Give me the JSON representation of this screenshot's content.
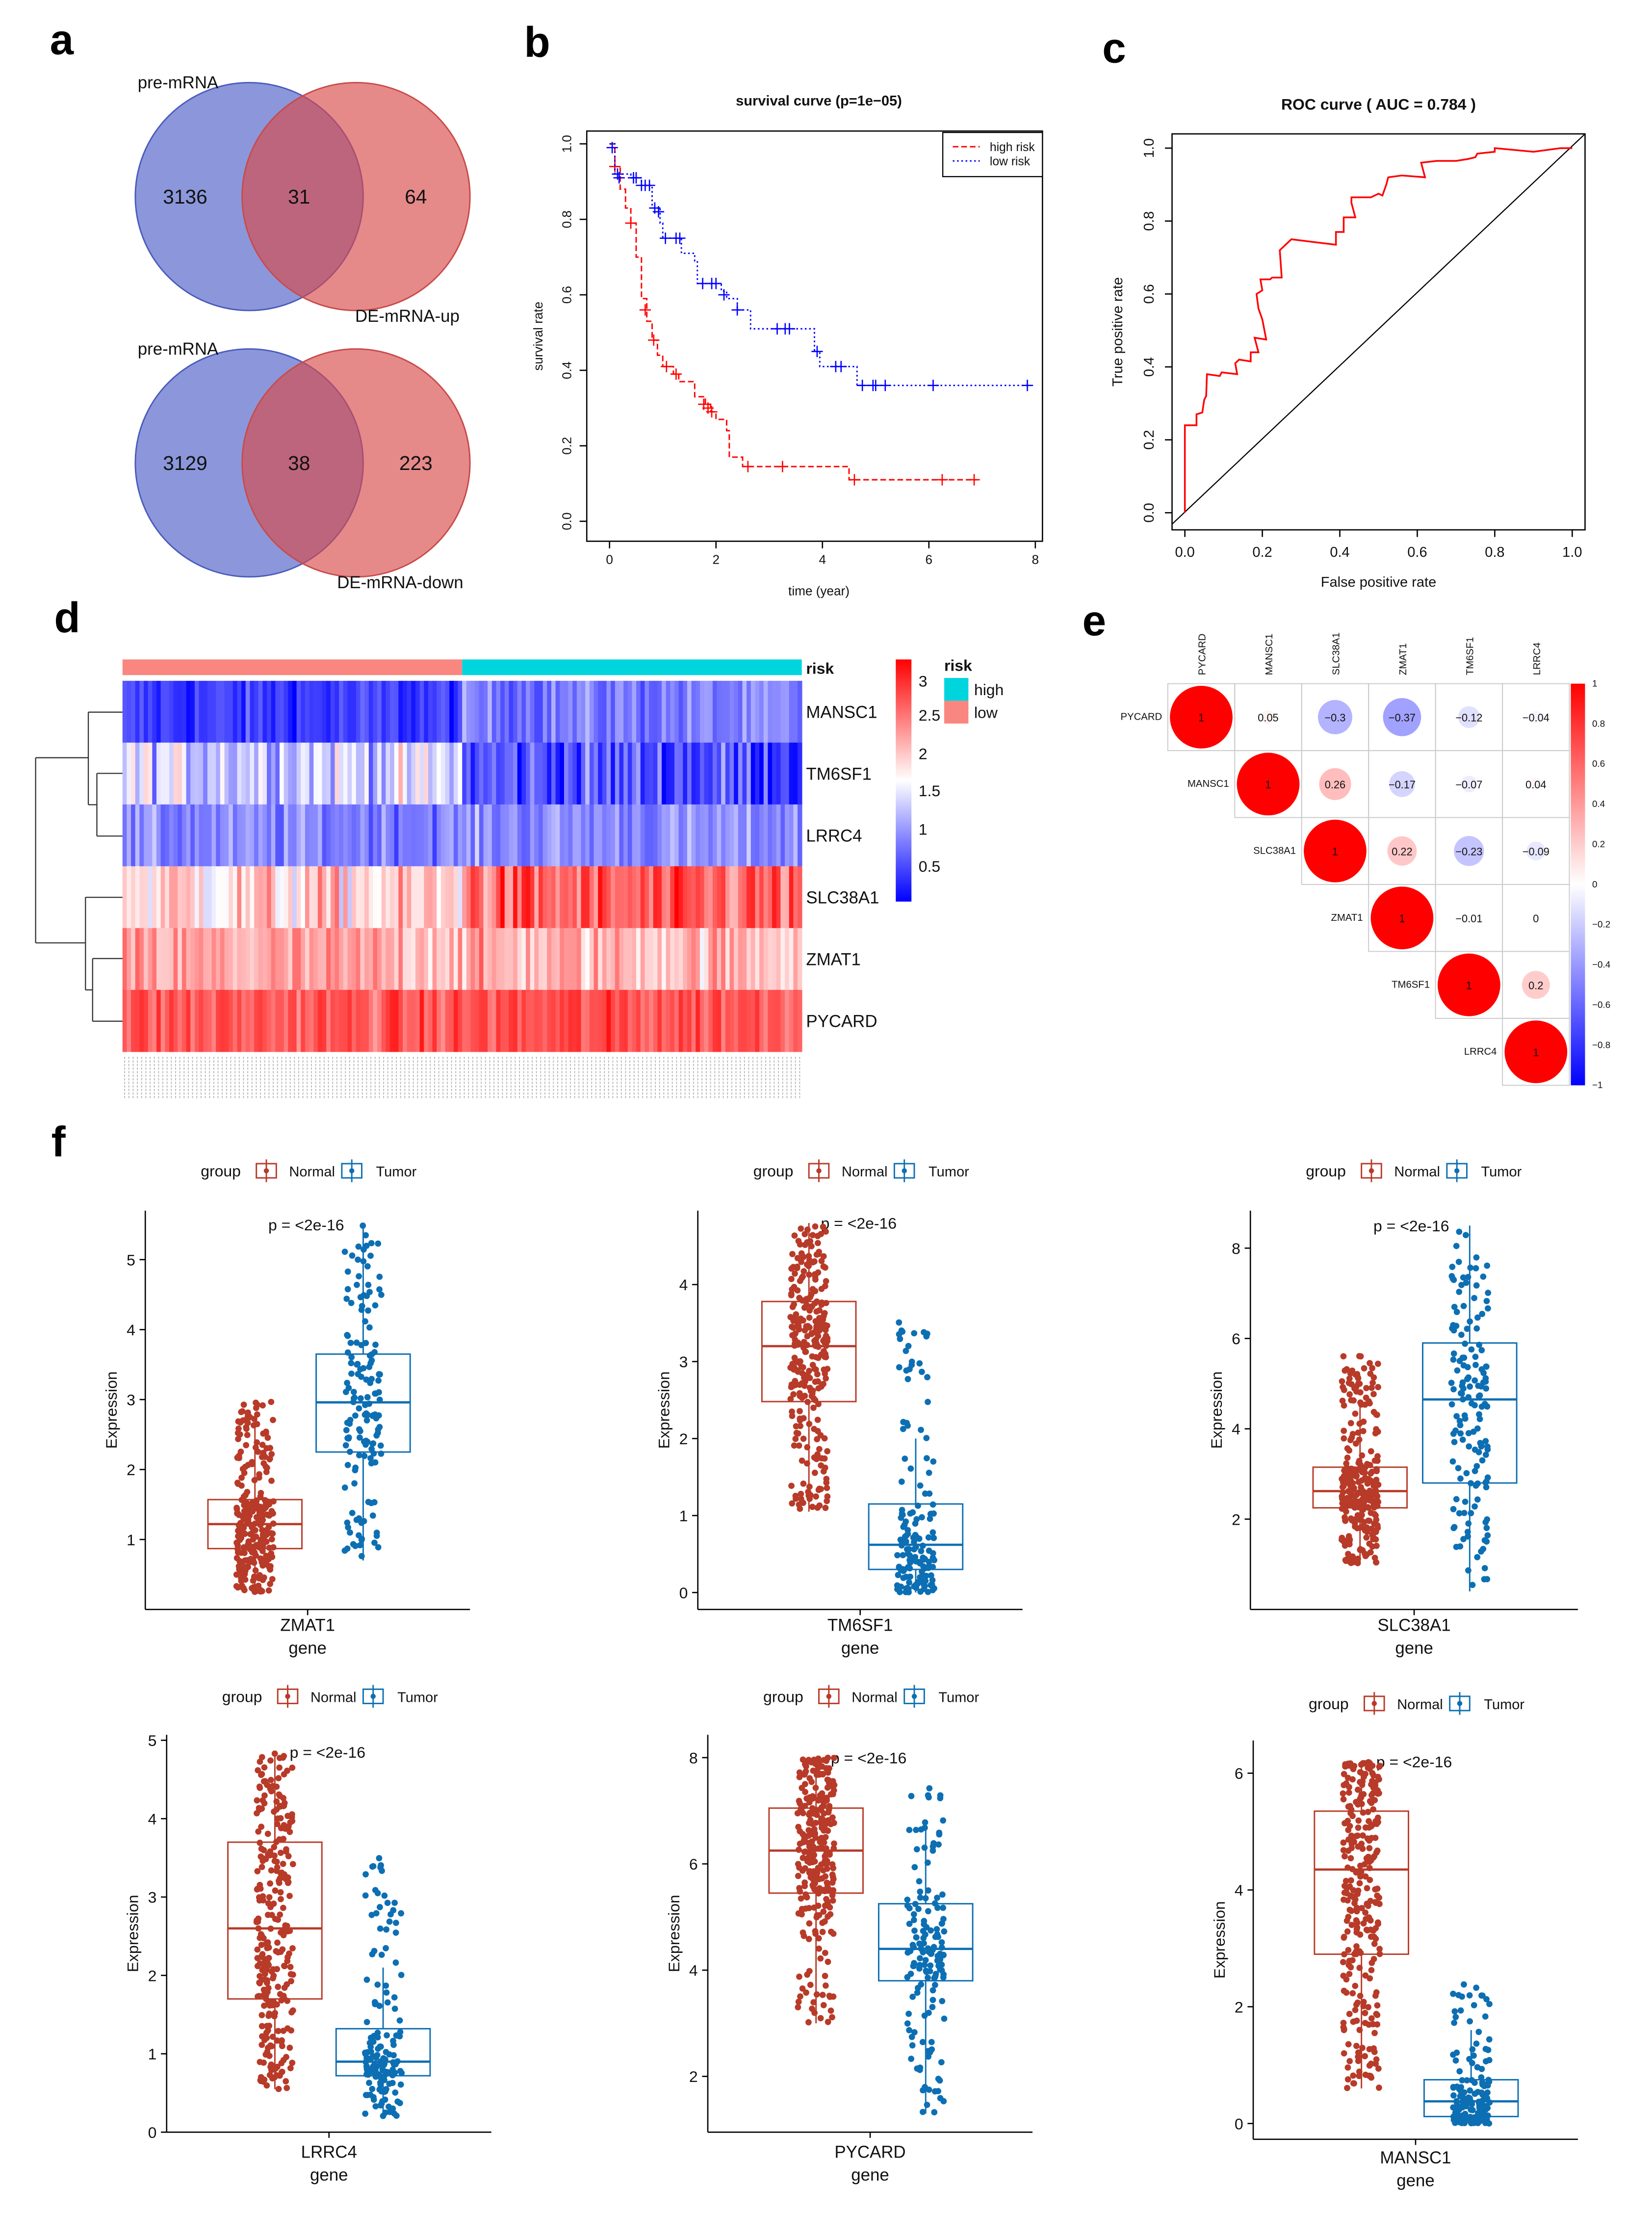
{
  "panel_labels": [
    "a",
    "b",
    "c",
    "d",
    "e",
    "f"
  ],
  "colors": {
    "blue": "#4457c4",
    "red": "#d94a4a",
    "high_risk": "#ff0000",
    "low_risk": "#0000ff",
    "cyan": "#00d5de",
    "salmon": "#f9877f",
    "normal": "#b83a28",
    "tumor": "#0d6fb3"
  },
  "venn": [
    {
      "left_label": "pre-mRNA",
      "right_label": "DE-mRNA-up",
      "left_only": "3136",
      "overlap": "31",
      "right_only": "64"
    },
    {
      "left_label": "pre-mRNA",
      "right_label": "DE-mRNA-down",
      "left_only": "3129",
      "overlap": "38",
      "right_only": "223"
    }
  ],
  "chart_data": [
    {
      "type": "line",
      "title": "survival curve (p=1e−05)",
      "xlabel": "time (year)",
      "ylabel": "survival rate",
      "xlim": [
        0,
        8
      ],
      "ylim": [
        0,
        1
      ],
      "xticks": [
        0,
        2,
        4,
        6,
        8
      ],
      "yticks": [
        "0.0",
        "0.2",
        "0.4",
        "0.6",
        "0.8",
        "1.0"
      ],
      "legend": {
        "position": "top-right",
        "entries": [
          "high risk",
          "low risk"
        ]
      },
      "series": [
        {
          "name": "high risk",
          "style": "dashed",
          "color": "#ff0000",
          "steps": [
            [
              0,
              1
            ],
            [
              0.1,
              0.94
            ],
            [
              0.2,
              0.88
            ],
            [
              0.3,
              0.83
            ],
            [
              0.4,
              0.79
            ],
            [
              0.5,
              0.7
            ],
            [
              0.6,
              0.59
            ],
            [
              0.7,
              0.53
            ],
            [
              0.8,
              0.48
            ],
            [
              0.9,
              0.44
            ],
            [
              1.0,
              0.41
            ],
            [
              1.2,
              0.39
            ],
            [
              1.3,
              0.37
            ],
            [
              1.6,
              0.33
            ],
            [
              1.8,
              0.31
            ],
            [
              1.9,
              0.29
            ],
            [
              2.0,
              0.27
            ],
            [
              2.2,
              0.24
            ],
            [
              2.25,
              0.17
            ],
            [
              2.5,
              0.145
            ],
            [
              4.5,
              0.11
            ],
            [
              6.9,
              0.11
            ]
          ],
          "censored": [
            [
              0.1,
              0.94
            ],
            [
              0.4,
              0.79
            ],
            [
              0.67,
              0.56
            ],
            [
              0.83,
              0.48
            ],
            [
              1.07,
              0.41
            ],
            [
              1.25,
              0.39
            ],
            [
              1.77,
              0.31
            ],
            [
              1.85,
              0.3
            ],
            [
              1.92,
              0.29
            ],
            [
              2.6,
              0.145
            ],
            [
              3.25,
              0.145
            ],
            [
              4.6,
              0.11
            ],
            [
              6.25,
              0.11
            ],
            [
              6.85,
              0.11
            ]
          ]
        },
        {
          "name": "low risk",
          "style": "dotted",
          "color": "#0000ff",
          "steps": [
            [
              0,
              1
            ],
            [
              0.1,
              0.92
            ],
            [
              0.4,
              0.91
            ],
            [
              0.6,
              0.89
            ],
            [
              0.8,
              0.83
            ],
            [
              0.95,
              0.79
            ],
            [
              1.0,
              0.75
            ],
            [
              1.35,
              0.71
            ],
            [
              1.6,
              0.69
            ],
            [
              1.65,
              0.63
            ],
            [
              2.1,
              0.61
            ],
            [
              2.2,
              0.59
            ],
            [
              2.4,
              0.56
            ],
            [
              2.65,
              0.51
            ],
            [
              3.85,
              0.45
            ],
            [
              3.95,
              0.41
            ],
            [
              4.65,
              0.36
            ],
            [
              7.85,
              0.36
            ]
          ],
          "censored": [
            [
              0.05,
              0.99
            ],
            [
              0.15,
              0.92
            ],
            [
              0.18,
              0.91
            ],
            [
              0.45,
              0.91
            ],
            [
              0.5,
              0.91
            ],
            [
              0.6,
              0.89
            ],
            [
              0.67,
              0.89
            ],
            [
              0.75,
              0.89
            ],
            [
              0.85,
              0.83
            ],
            [
              0.92,
              0.82
            ],
            [
              1.05,
              0.75
            ],
            [
              1.25,
              0.75
            ],
            [
              1.32,
              0.75
            ],
            [
              1.75,
              0.63
            ],
            [
              1.92,
              0.63
            ],
            [
              2.0,
              0.63
            ],
            [
              2.15,
              0.6
            ],
            [
              2.4,
              0.56
            ],
            [
              3.15,
              0.51
            ],
            [
              3.3,
              0.51
            ],
            [
              3.38,
              0.51
            ],
            [
              3.9,
              0.45
            ],
            [
              4.25,
              0.41
            ],
            [
              4.35,
              0.41
            ],
            [
              4.75,
              0.36
            ],
            [
              4.95,
              0.36
            ],
            [
              5.0,
              0.36
            ],
            [
              5.18,
              0.36
            ],
            [
              6.08,
              0.36
            ],
            [
              7.85,
              0.36
            ]
          ]
        }
      ]
    },
    {
      "type": "line",
      "title": "ROC curve ( AUC =  0.784 )",
      "xlabel": "False positive rate",
      "ylabel": "True positive rate",
      "xlim": [
        0,
        1
      ],
      "ylim": [
        0,
        1
      ],
      "xticks": [
        "0.0",
        "0.2",
        "0.4",
        "0.6",
        "0.8",
        "1.0"
      ],
      "yticks": [
        "0.0",
        "0.2",
        "0.4",
        "0.6",
        "0.8",
        "1.0"
      ],
      "auc": 0.784,
      "series": [
        {
          "color": "#ff0000",
          "points": [
            [
              0,
              0
            ],
            [
              0,
              0.24
            ],
            [
              0.03,
              0.24
            ],
            [
              0.03,
              0.27
            ],
            [
              0.045,
              0.275
            ],
            [
              0.05,
              0.31
            ],
            [
              0.055,
              0.32
            ],
            [
              0.057,
              0.38
            ],
            [
              0.09,
              0.375
            ],
            [
              0.095,
              0.385
            ],
            [
              0.135,
              0.38
            ],
            [
              0.13,
              0.41
            ],
            [
              0.14,
              0.42
            ],
            [
              0.17,
              0.415
            ],
            [
              0.17,
              0.44
            ],
            [
              0.19,
              0.44
            ],
            [
              0.18,
              0.48
            ],
            [
              0.21,
              0.475
            ],
            [
              0.2,
              0.53
            ],
            [
              0.19,
              0.56
            ],
            [
              0.185,
              0.6
            ],
            [
              0.2,
              0.61
            ],
            [
              0.195,
              0.64
            ],
            [
              0.22,
              0.64
            ],
            [
              0.225,
              0.645
            ],
            [
              0.25,
              0.645
            ],
            [
              0.245,
              0.72
            ],
            [
              0.275,
              0.75
            ],
            [
              0.39,
              0.735
            ],
            [
              0.39,
              0.77
            ],
            [
              0.41,
              0.77
            ],
            [
              0.41,
              0.81
            ],
            [
              0.44,
              0.81
            ],
            [
              0.43,
              0.85
            ],
            [
              0.43,
              0.865
            ],
            [
              0.48,
              0.865
            ],
            [
              0.5,
              0.875
            ],
            [
              0.51,
              0.87
            ],
            [
              0.52,
              0.9
            ],
            [
              0.525,
              0.92
            ],
            [
              0.56,
              0.925
            ],
            [
              0.62,
              0.92
            ],
            [
              0.61,
              0.96
            ],
            [
              0.65,
              0.965
            ],
            [
              0.7,
              0.965
            ],
            [
              0.73,
              0.97
            ],
            [
              0.75,
              0.975
            ],
            [
              0.755,
              0.985
            ],
            [
              0.8,
              0.99
            ],
            [
              0.8,
              1.0
            ],
            [
              0.9,
              0.99
            ],
            [
              0.97,
              1.0
            ],
            [
              1,
              1
            ]
          ]
        },
        {
          "color": "#000000",
          "points": [
            [
              0,
              0
            ],
            [
              1,
              1
            ]
          ]
        }
      ]
    },
    {
      "type": "heatmap",
      "annotation_label": "risk",
      "rows": [
        "MANSC1",
        "TM6SF1",
        "LRRC4",
        "SLC38A1",
        "ZMAT1",
        "PYCARD"
      ],
      "groups": [
        {
          "name": "low",
          "color": "#f9877f"
        },
        {
          "name": "high",
          "color": "#00d5de"
        }
      ],
      "legend_title": "risk",
      "legend_entries": [
        "high",
        "low"
      ],
      "colorbar": {
        "ticks": [
          "3",
          "2.5",
          "2",
          "1.5",
          "1",
          "0.5"
        ],
        "range": [
          0.2,
          3.3
        ],
        "low": "#0000ff",
        "mid": "#ffffff",
        "high": "#ff0000"
      }
    },
    {
      "type": "heatmap",
      "subtype": "correlation",
      "labels": [
        "PYCARD",
        "MANSC1",
        "SLC38A1",
        "ZMAT1",
        "TM6SF1",
        "LRRC4"
      ],
      "upper": [
        [
          "1",
          "0.05",
          "−0.3",
          "−0.37",
          "−0.12",
          "−0.04"
        ],
        [
          "1",
          "0.26",
          "−0.17",
          "−0.07",
          "0.04"
        ],
        [
          "1",
          "0.22",
          "−0.23",
          "−0.09"
        ],
        [
          "1",
          "−0.01",
          "0"
        ],
        [
          "1",
          "0.2"
        ],
        [
          "1"
        ]
      ],
      "values": [
        [
          1,
          0.05,
          -0.3,
          -0.37,
          -0.12,
          -0.04
        ],
        [
          1,
          0.26,
          -0.17,
          -0.07,
          0.04
        ],
        [
          1,
          0.22,
          -0.23,
          -0.09
        ],
        [
          1,
          -0.01,
          0
        ],
        [
          1,
          0.2
        ],
        [
          1
        ]
      ],
      "colorbar_ticks": [
        "1",
        "0.8",
        "0.6",
        "0.4",
        "0.2",
        "0",
        "−0.2",
        "−0.4",
        "−0.6",
        "−0.8",
        "−1"
      ]
    },
    {
      "type": "box",
      "gene": "ZMAT1",
      "xlabel": "gene",
      "ylabel": "Expression",
      "p_label": "p = <2e-16",
      "legend_title": "group",
      "ylim": [
        0,
        5.7
      ],
      "yticks": [
        1,
        2,
        3,
        4,
        5
      ],
      "groups": [
        {
          "name": "Normal",
          "q1": 0.87,
          "median": 1.22,
          "q3": 1.57,
          "whisker_low": 0.25,
          "whisker_high": 2.6,
          "max": 2.97
        },
        {
          "name": "Tumor",
          "q1": 2.25,
          "median": 2.96,
          "q3": 3.65,
          "whisker_low": 0.7,
          "whisker_high": 5.5,
          "max": 5.5
        }
      ]
    },
    {
      "type": "box",
      "gene": "TM6SF1",
      "xlabel": "gene",
      "ylabel": "Expression",
      "p_label": "p = <2e-16",
      "legend_title": "group",
      "ylim": [
        -0.22,
        4.96
      ],
      "yticks": [
        0,
        1,
        2,
        3,
        4
      ],
      "groups": [
        {
          "name": "Normal",
          "q1": 2.48,
          "median": 3.2,
          "q3": 3.78,
          "whisker_low": 1.05,
          "whisker_high": 4.8,
          "max": 4.8
        },
        {
          "name": "Tumor",
          "q1": 0.3,
          "median": 0.62,
          "q3": 1.15,
          "whisker_low": 0.0,
          "whisker_high": 2.0,
          "max": 3.55
        }
      ]
    },
    {
      "type": "box",
      "gene": "SLC38A1",
      "xlabel": "gene",
      "ylabel": "Expression",
      "p_label": "p = <2e-16",
      "legend_title": "group",
      "ylim": [
        0,
        8.83
      ],
      "yticks": [
        2,
        4,
        6,
        8
      ],
      "groups": [
        {
          "name": "Normal",
          "q1": 2.25,
          "median": 2.62,
          "q3": 3.15,
          "whisker_low": 1.0,
          "whisker_high": 4.5,
          "max": 5.7
        },
        {
          "name": "Tumor",
          "q1": 2.8,
          "median": 4.65,
          "q3": 5.9,
          "whisker_low": 0.4,
          "whisker_high": 8.5,
          "max": 8.5
        }
      ]
    },
    {
      "type": "box",
      "gene": "LRRC4",
      "xlabel": "gene",
      "ylabel": "Expression",
      "p_label": "p = <2e-16",
      "legend_title": "group",
      "ylim": [
        0,
        5.07
      ],
      "yticks": [
        0,
        1,
        2,
        3,
        4,
        5
      ],
      "groups": [
        {
          "name": "Normal",
          "q1": 1.7,
          "median": 2.6,
          "q3": 3.7,
          "whisker_low": 0.55,
          "whisker_high": 4.85,
          "max": 4.85
        },
        {
          "name": "Tumor",
          "q1": 0.72,
          "median": 0.9,
          "q3": 1.32,
          "whisker_low": 0.2,
          "whisker_high": 2.1,
          "max": 3.6
        }
      ]
    },
    {
      "type": "box",
      "gene": "PYCARD",
      "xlabel": "gene",
      "ylabel": "Expression",
      "p_label": "p = <2e-16",
      "legend_title": "group",
      "ylim": [
        0.95,
        8.43
      ],
      "yticks": [
        2,
        4,
        6,
        8
      ],
      "groups": [
        {
          "name": "Normal",
          "q1": 5.45,
          "median": 6.25,
          "q3": 7.05,
          "whisker_low": 3.0,
          "whisker_high": 8.0,
          "max": 8.0
        },
        {
          "name": "Tumor",
          "q1": 3.8,
          "median": 4.4,
          "q3": 5.25,
          "whisker_low": 1.3,
          "whisker_high": 6.8,
          "max": 7.45
        }
      ]
    },
    {
      "type": "box",
      "gene": "MANSC1",
      "xlabel": "gene",
      "ylabel": "Expression",
      "p_label": "p = <2e-16",
      "legend_title": "group",
      "ylim": [
        -0.27,
        6.56
      ],
      "yticks": [
        0,
        2,
        4,
        6
      ],
      "groups": [
        {
          "name": "Normal",
          "q1": 2.9,
          "median": 4.35,
          "q3": 5.35,
          "whisker_low": 0.6,
          "whisker_high": 6.2,
          "max": 6.2
        },
        {
          "name": "Tumor",
          "q1": 0.12,
          "median": 0.38,
          "q3": 0.75,
          "whisker_low": 0.0,
          "whisker_high": 1.6,
          "max": 2.4
        }
      ]
    }
  ]
}
